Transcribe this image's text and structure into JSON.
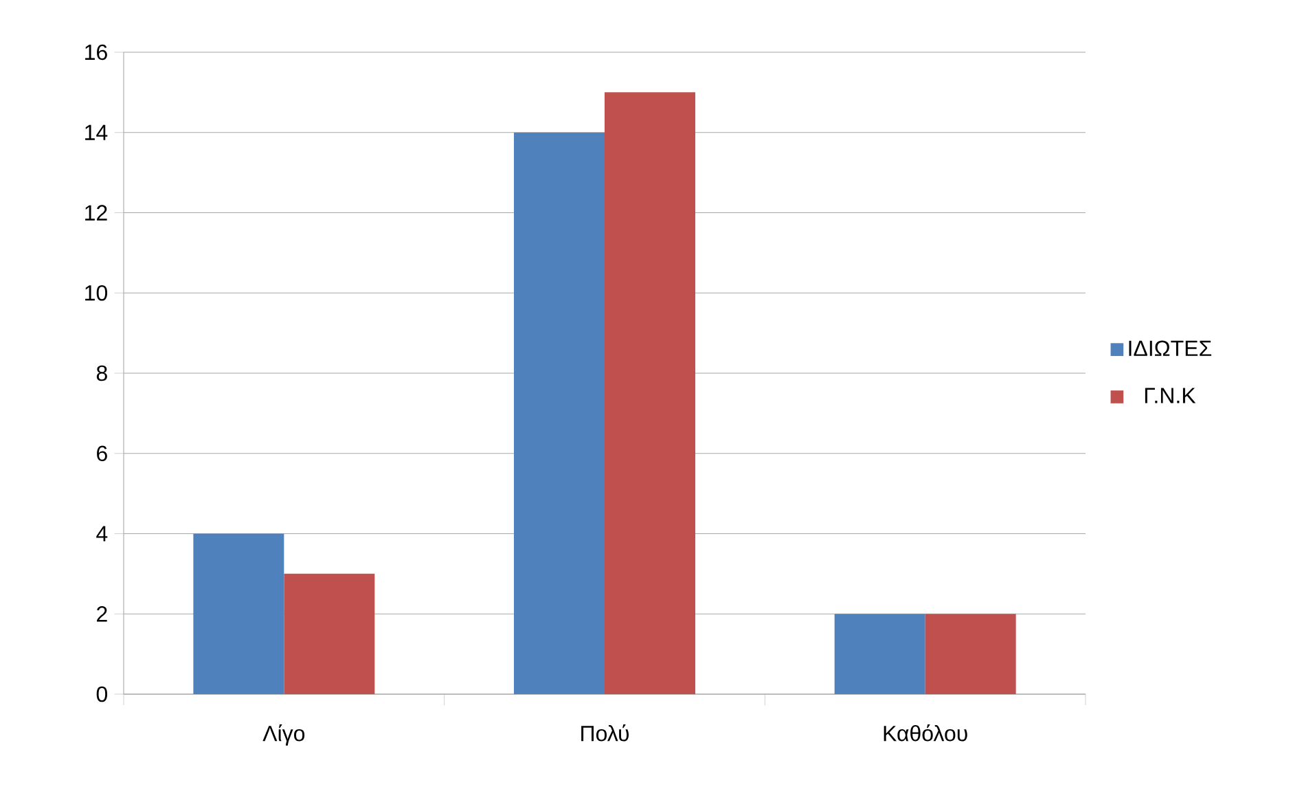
{
  "chart_data": {
    "type": "bar",
    "categories": [
      "Λίγο",
      "Πολύ",
      "Καθόλου"
    ],
    "series": [
      {
        "name": "ΙΔΙΩΤΕΣ",
        "color": "#4f81bd",
        "values": [
          4,
          14,
          2
        ]
      },
      {
        "name": "Γ.Ν.Κ",
        "color": "#c0504d",
        "values": [
          3,
          15,
          2
        ]
      }
    ],
    "ylim": [
      0,
      16
    ],
    "yticks": [
      0,
      2,
      4,
      6,
      8,
      10,
      12,
      14,
      16
    ],
    "grid": "y",
    "legend": "right"
  }
}
